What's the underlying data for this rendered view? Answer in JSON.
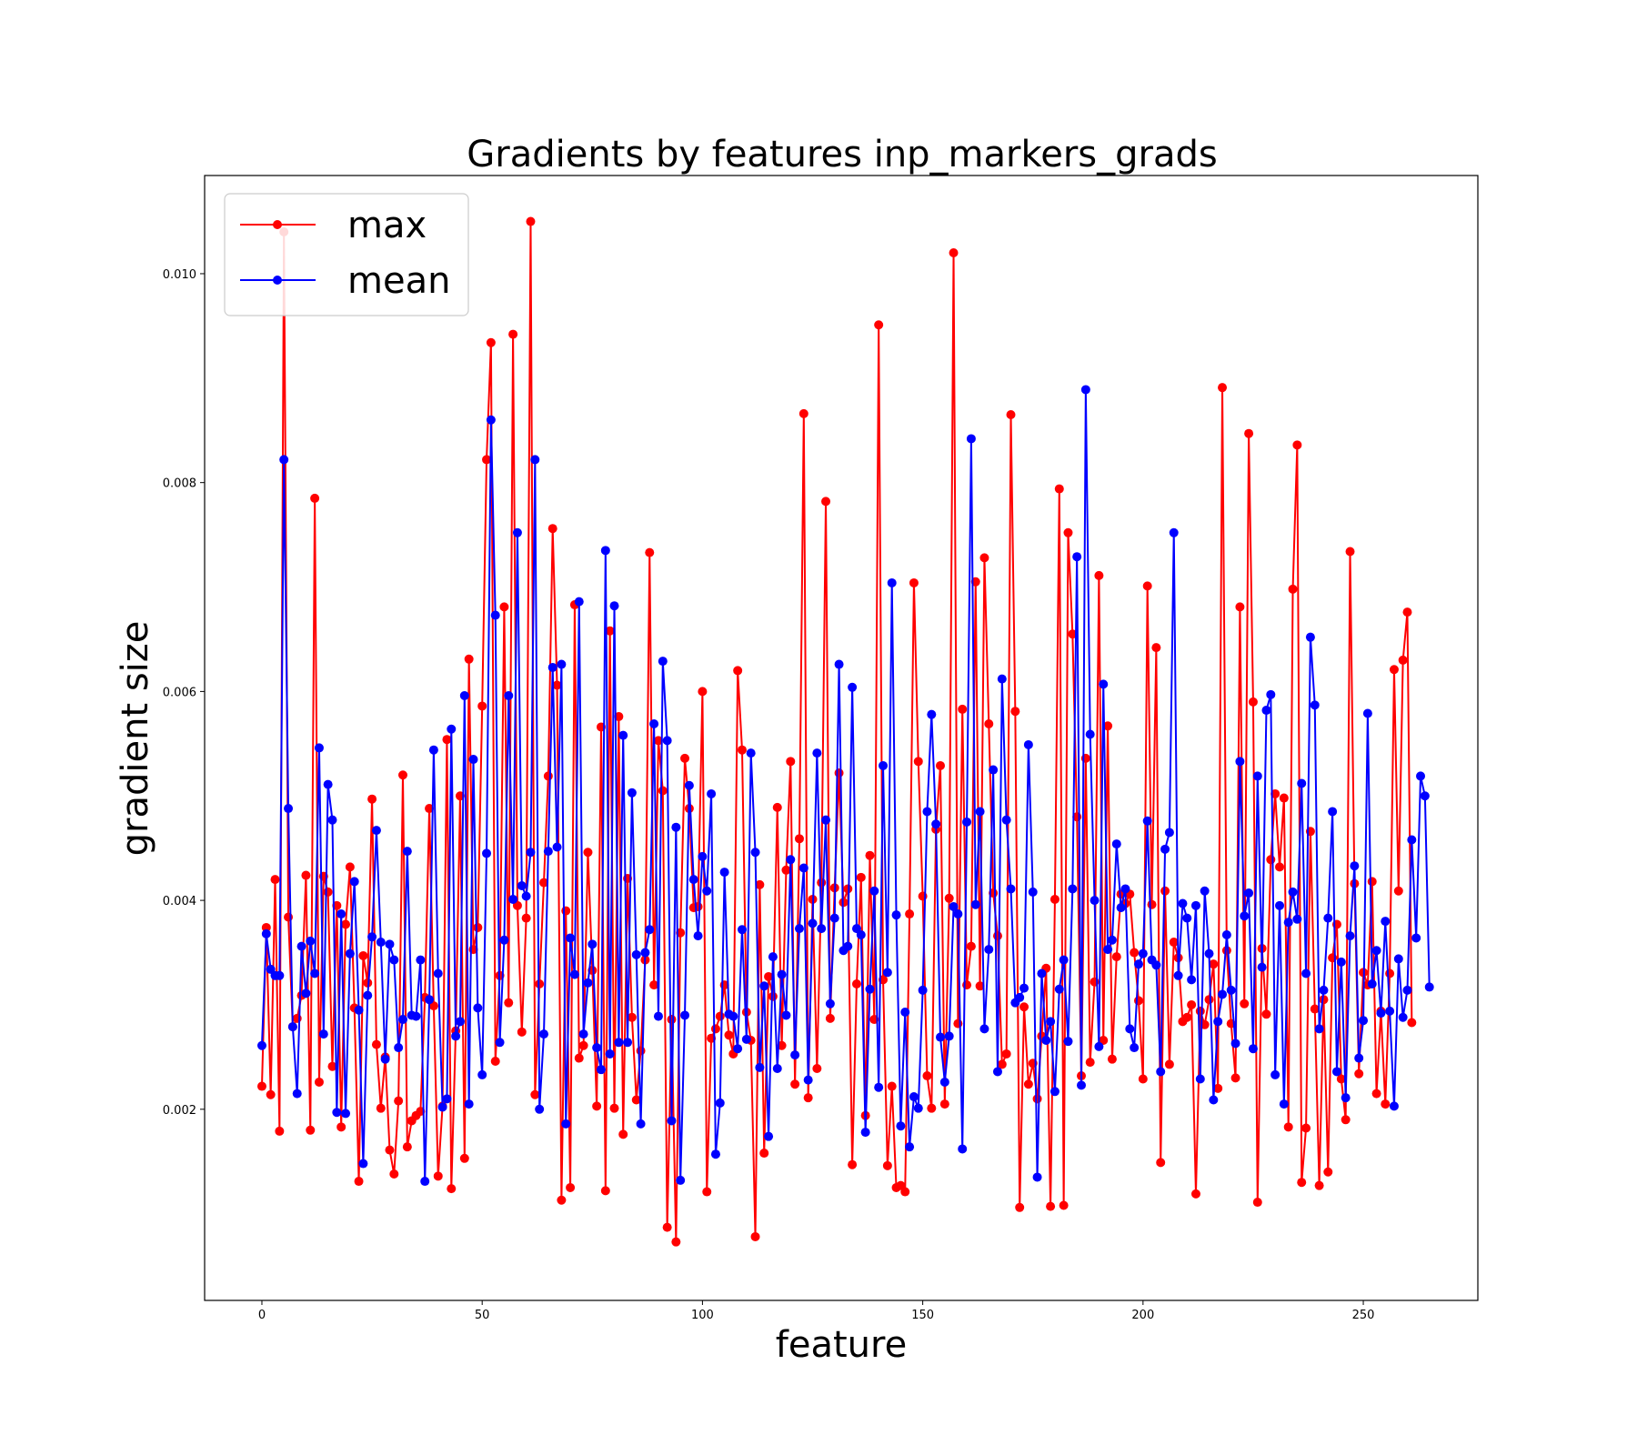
{
  "chart_data": {
    "type": "line",
    "title": "Gradients by features inp_markers_grads",
    "xlabel": "feature",
    "ylabel": "gradient size",
    "xlim": [
      -13,
      276
    ],
    "ylim": [
      0.00017,
      0.01094
    ],
    "xticks": [
      0,
      50,
      100,
      150,
      200,
      250
    ],
    "xtick_labels": [
      "0",
      "50",
      "100",
      "150",
      "200",
      "250"
    ],
    "yticks": [
      0.002,
      0.004,
      0.006,
      0.008,
      0.01
    ],
    "ytick_labels": [
      "0.002",
      "0.004",
      "0.006",
      "0.008",
      "0.010"
    ],
    "grid": false,
    "legend_position": "upper-left",
    "series": [
      {
        "name": "max",
        "color": "#ff0000",
        "values": [
          0.00222,
          0.00374,
          0.00214,
          0.0042,
          0.00179,
          0.0104,
          0.00384,
          0.00279,
          0.00287,
          0.00309,
          0.00424,
          0.0018,
          0.00785,
          0.00226,
          0.00423,
          0.00408,
          0.00241,
          0.00395,
          0.00183,
          0.00377,
          0.00432,
          0.00297,
          0.00131,
          0.00347,
          0.00321,
          0.00497,
          0.00262,
          0.00201,
          0.0025,
          0.00161,
          0.00138,
          0.00208,
          0.0052,
          0.00164,
          0.00189,
          0.00194,
          0.00198,
          0.00307,
          0.00488,
          0.00299,
          0.00136,
          0.00203,
          0.00554,
          0.00124,
          0.00275,
          0.005,
          0.00153,
          0.00631,
          0.00353,
          0.00374,
          0.00586,
          0.00822,
          0.00934,
          0.00246,
          0.00328,
          0.00681,
          0.00302,
          0.00942,
          0.00395,
          0.00274,
          0.00383,
          0.0105,
          0.00214,
          0.0032,
          0.00417,
          0.00519,
          0.00756,
          0.00606,
          0.00113,
          0.0039,
          0.00125,
          0.00683,
          0.00249,
          0.00261,
          0.00446,
          0.00333,
          0.00203,
          0.00566,
          0.00122,
          0.00658,
          0.00201,
          0.00576,
          0.00176,
          0.00421,
          0.00288,
          0.00209,
          0.00256,
          0.00343,
          0.00733,
          0.00319,
          0.00553,
          0.00505,
          0.00087,
          0.00286,
          0.00073,
          0.00369,
          0.00536,
          0.00488,
          0.00393,
          0.00394,
          0.006,
          0.00121,
          0.00268,
          0.00277,
          0.00289,
          0.00319,
          0.00271,
          0.00253,
          0.0062,
          0.00544,
          0.00293,
          0.00266,
          0.00078,
          0.00415,
          0.00158,
          0.00327,
          0.00308,
          0.00489,
          0.00261,
          0.00429,
          0.00533,
          0.00224,
          0.00459,
          0.00866,
          0.00211,
          0.00401,
          0.00239,
          0.00417,
          0.00782,
          0.00287,
          0.00412,
          0.00522,
          0.00398,
          0.00411,
          0.00147,
          0.0032,
          0.00422,
          0.00194,
          0.00443,
          0.00286,
          0.00951,
          0.00324,
          0.00146,
          0.00222,
          0.00125,
          0.00127,
          0.00121,
          0.00387,
          0.00704,
          0.00533,
          0.00404,
          0.00232,
          0.00201,
          0.00468,
          0.00529,
          0.00205,
          0.00402,
          0.0102,
          0.00282,
          0.00583,
          0.00319,
          0.00356,
          0.00705,
          0.00318,
          0.00728,
          0.00569,
          0.00407,
          0.00366,
          0.00243,
          0.00253,
          0.00865,
          0.00581,
          0.00106,
          0.00298,
          0.00224,
          0.00244,
          0.0021,
          0.0027,
          0.00335,
          0.00107,
          0.00401,
          0.00794,
          0.00108,
          0.00752,
          0.00655,
          0.0048,
          0.00232,
          0.00536,
          0.00245,
          0.00322,
          0.00711,
          0.00266,
          0.00567,
          0.00248,
          0.00346,
          0.00406,
          0.00397,
          0.00406,
          0.0035,
          0.00304,
          0.00229,
          0.00701,
          0.00396,
          0.00642,
          0.00149,
          0.00409,
          0.00243,
          0.0036,
          0.00345,
          0.00284,
          0.00288,
          0.003,
          0.00119,
          0.00294,
          0.00281,
          0.00305,
          0.00339,
          0.0022,
          0.00891,
          0.00352,
          0.00282,
          0.0023,
          0.00681,
          0.00301,
          0.00847,
          0.0059,
          0.00111,
          0.00354,
          0.00291,
          0.00439,
          0.00502,
          0.00432,
          0.00498,
          0.00183,
          0.00698,
          0.00836,
          0.0013,
          0.00182,
          0.00466,
          0.00296,
          0.00127,
          0.00305,
          0.0014,
          0.00345,
          0.00377,
          0.00229,
          0.0019,
          0.00734,
          0.00416,
          0.00234,
          0.00331,
          0.00319,
          0.00418,
          0.00215,
          0.00294,
          0.00205,
          0.0033,
          0.00621,
          0.00409,
          0.0063,
          0.00676,
          0.00283
        ]
      },
      {
        "name": "mean",
        "color": "#0000ff",
        "values": [
          0.00261,
          0.00368,
          0.00334,
          0.00328,
          0.00328,
          0.00822,
          0.00488,
          0.00279,
          0.00215,
          0.00356,
          0.00311,
          0.00361,
          0.0033,
          0.00546,
          0.00272,
          0.00511,
          0.00477,
          0.00197,
          0.00387,
          0.00196,
          0.00349,
          0.00418,
          0.00295,
          0.00148,
          0.00309,
          0.00365,
          0.00467,
          0.0036,
          0.00248,
          0.00358,
          0.00343,
          0.00259,
          0.00286,
          0.00447,
          0.0029,
          0.00289,
          0.00343,
          0.00131,
          0.00305,
          0.00544,
          0.0033,
          0.00202,
          0.0021,
          0.00564,
          0.0027,
          0.00284,
          0.00596,
          0.00205,
          0.00535,
          0.00297,
          0.00233,
          0.00445,
          0.0086,
          0.00673,
          0.00264,
          0.00362,
          0.00596,
          0.00401,
          0.00752,
          0.00414,
          0.00404,
          0.00446,
          0.00822,
          0.002,
          0.00272,
          0.00447,
          0.00623,
          0.00451,
          0.00626,
          0.00186,
          0.00364,
          0.00329,
          0.00686,
          0.00272,
          0.00321,
          0.00358,
          0.00259,
          0.00238,
          0.00735,
          0.00253,
          0.00682,
          0.00264,
          0.00558,
          0.00264,
          0.00503,
          0.00348,
          0.00186,
          0.0035,
          0.00372,
          0.00569,
          0.00289,
          0.00629,
          0.00553,
          0.00189,
          0.0047,
          0.00132,
          0.0029,
          0.0051,
          0.0042,
          0.00366,
          0.00442,
          0.00409,
          0.00502,
          0.00157,
          0.00206,
          0.00427,
          0.00291,
          0.00289,
          0.00258,
          0.00372,
          0.00267,
          0.00541,
          0.00446,
          0.0024,
          0.00318,
          0.00174,
          0.00346,
          0.00239,
          0.00329,
          0.0029,
          0.00439,
          0.00252,
          0.00373,
          0.00431,
          0.00228,
          0.00378,
          0.00541,
          0.00373,
          0.00477,
          0.00301,
          0.00383,
          0.00626,
          0.00352,
          0.00356,
          0.00604,
          0.00373,
          0.00367,
          0.00178,
          0.00315,
          0.00409,
          0.00221,
          0.00529,
          0.00331,
          0.00704,
          0.00386,
          0.00184,
          0.00293,
          0.00164,
          0.00212,
          0.00201,
          0.00314,
          0.00485,
          0.00578,
          0.00473,
          0.00269,
          0.00226,
          0.0027,
          0.00394,
          0.00387,
          0.00162,
          0.00475,
          0.00842,
          0.00396,
          0.00485,
          0.00277,
          0.00353,
          0.00525,
          0.00236,
          0.00612,
          0.00477,
          0.00411,
          0.00302,
          0.00307,
          0.00316,
          0.00549,
          0.00408,
          0.00135,
          0.0033,
          0.00266,
          0.00284,
          0.00217,
          0.00315,
          0.00343,
          0.00265,
          0.00411,
          0.00729,
          0.00223,
          0.00889,
          0.00559,
          0.004,
          0.0026,
          0.00607,
          0.00353,
          0.00362,
          0.00454,
          0.00393,
          0.00411,
          0.00277,
          0.00259,
          0.00339,
          0.00349,
          0.00476,
          0.00343,
          0.00338,
          0.00236,
          0.00449,
          0.00465,
          0.00752,
          0.00328,
          0.00397,
          0.00383,
          0.00324,
          0.00395,
          0.00229,
          0.00409,
          0.00349,
          0.00209,
          0.00284,
          0.0031,
          0.00367,
          0.00314,
          0.00263,
          0.00533,
          0.00385,
          0.00407,
          0.00258,
          0.00519,
          0.00336,
          0.00582,
          0.00597,
          0.00233,
          0.00395,
          0.00205,
          0.00379,
          0.00408,
          0.00382,
          0.00512,
          0.0033,
          0.00652,
          0.00587,
          0.00277,
          0.00314,
          0.00383,
          0.00485,
          0.00236,
          0.00341,
          0.00211,
          0.00366,
          0.00433,
          0.00249,
          0.00285,
          0.00579,
          0.0032,
          0.00352,
          0.00292,
          0.0038,
          0.00294,
          0.00203,
          0.00344,
          0.00288,
          0.00314,
          0.00458,
          0.00364,
          0.00519,
          0.005,
          0.00317
        ]
      }
    ]
  }
}
